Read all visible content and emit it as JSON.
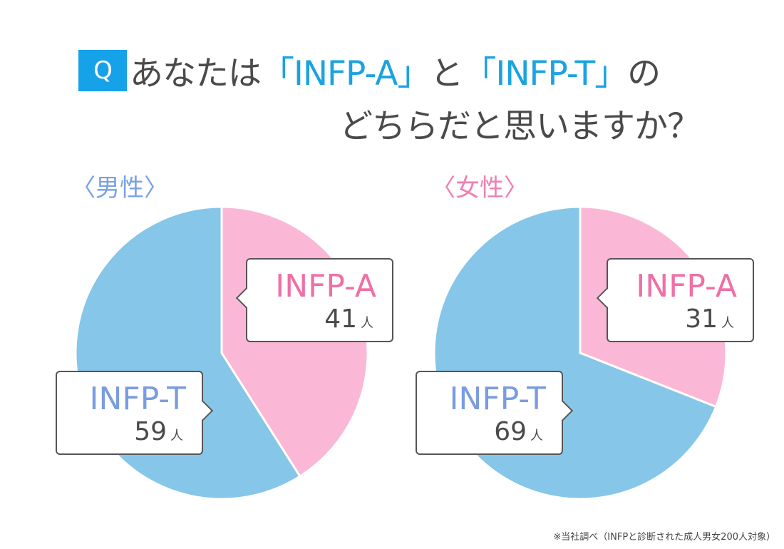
{
  "title": {
    "q_label": "Q",
    "line1_pre": "あなたは",
    "line1_a": "「INFP-A」",
    "line1_mid": "と",
    "line1_t": "「INFP-T」",
    "line1_post": "の",
    "line2": "どちらだと思いますか？"
  },
  "colors": {
    "pink": "#fbb8d6",
    "blue": "#86c6e8",
    "accent": "#15a2e8"
  },
  "chart_data": [
    {
      "type": "pie",
      "title": "〈男性〉",
      "unit": "人",
      "slices": [
        {
          "label": "INFP-A",
          "value": 41,
          "color": "#fbb8d6"
        },
        {
          "label": "INFP-T",
          "value": 59,
          "color": "#86c6e8"
        }
      ]
    },
    {
      "type": "pie",
      "title": "〈女性〉",
      "unit": "人",
      "slices": [
        {
          "label": "INFP-A",
          "value": 31,
          "color": "#fbb8d6"
        },
        {
          "label": "INFP-T",
          "value": 69,
          "color": "#86c6e8"
        }
      ]
    }
  ],
  "footnote": "※当社調べ（INFPと診断された成人男女200人対象）"
}
